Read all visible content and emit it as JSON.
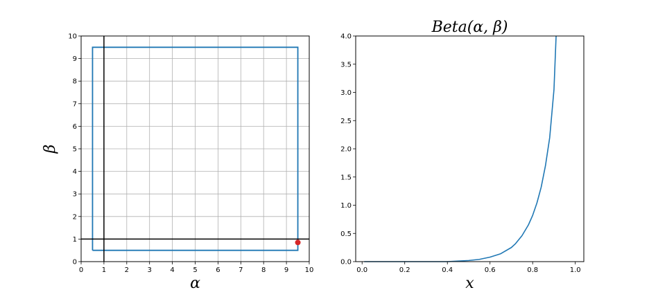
{
  "chart_data": [
    {
      "type": "line",
      "xlabel": "α",
      "ylabel": "β",
      "xlim": [
        0,
        10
      ],
      "ylim": [
        0,
        10
      ],
      "xticks": [
        0,
        1,
        2,
        3,
        4,
        5,
        6,
        7,
        8,
        9,
        10
      ],
      "yticks": [
        0,
        1,
        2,
        3,
        4,
        5,
        6,
        7,
        8,
        9,
        10
      ],
      "grid": true,
      "series": [
        {
          "x": [
            0.5,
            9.5,
            9.5,
            0.5,
            0.5
          ],
          "y": [
            0.5,
            0.5,
            9.5,
            9.5,
            0.5
          ],
          "color": "#1f77b4"
        }
      ],
      "reference_lines": {
        "vertical_x": 1,
        "horizontal_y": 1,
        "color": "#000000"
      },
      "point": {
        "x": 9.5,
        "y": 0.85,
        "color": "#d62728"
      }
    },
    {
      "type": "line",
      "title": "Beta(α, β)",
      "xlabel": "x",
      "ylabel": "",
      "xlim": [
        -0.03,
        1.04
      ],
      "ylim": [
        0,
        4
      ],
      "xticks": [
        "0.0",
        "0.2",
        "0.4",
        "0.6",
        "0.8",
        "1.0"
      ],
      "yticks": [
        "0.0",
        "0.5",
        "1.0",
        "1.5",
        "2.0",
        "2.5",
        "3.0",
        "3.5",
        "4.0"
      ],
      "grid": false,
      "series": [
        {
          "x": [
            0.01,
            0.1,
            0.2,
            0.3,
            0.4,
            0.45,
            0.5,
            0.55,
            0.6,
            0.65,
            0.7,
            0.72,
            0.75,
            0.78,
            0.8,
            0.82,
            0.84,
            0.86,
            0.88,
            0.9,
            0.91
          ],
          "y": [
            0.0,
            0.0,
            0.0,
            0.0,
            0.0,
            0.01,
            0.02,
            0.04,
            0.08,
            0.14,
            0.25,
            0.32,
            0.46,
            0.65,
            0.82,
            1.04,
            1.32,
            1.7,
            2.2,
            3.05,
            4.0
          ],
          "color": "#1f77b4"
        }
      ]
    }
  ]
}
